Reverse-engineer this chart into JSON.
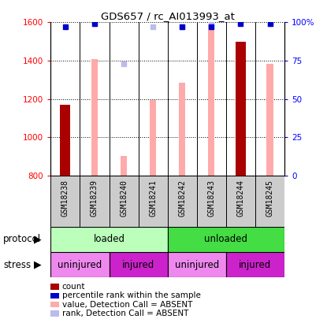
{
  "title": "GDS657 / rc_AI013993_at",
  "samples": [
    "GSM18238",
    "GSM18239",
    "GSM18240",
    "GSM18241",
    "GSM18242",
    "GSM18243",
    "GSM18244",
    "GSM18245"
  ],
  "ylim_left": [
    800,
    1600
  ],
  "ylim_right": [
    0,
    100
  ],
  "yticks_left": [
    800,
    1000,
    1200,
    1400,
    1600
  ],
  "yticks_right": [
    0,
    25,
    50,
    75,
    100
  ],
  "count_values": [
    1170,
    null,
    null,
    null,
    null,
    null,
    1500,
    null
  ],
  "count_color": "#aa0000",
  "rank_pct": [
    97,
    99,
    null,
    null,
    97,
    97,
    99,
    99
  ],
  "rank_color": "#0000cc",
  "value_absent": [
    null,
    1410,
    900,
    1195,
    1285,
    1590,
    null,
    1385
  ],
  "value_absent_color": "#ffaaaa",
  "rank_absent_pct": [
    null,
    99,
    73,
    97,
    97,
    99,
    null,
    99
  ],
  "rank_absent_color": "#bbbbee",
  "protocol_groups": [
    {
      "label": "loaded",
      "span": [
        0,
        4
      ],
      "color": "#bbffbb"
    },
    {
      "label": "unloaded",
      "span": [
        4,
        8
      ],
      "color": "#44dd44"
    }
  ],
  "stress_groups": [
    {
      "label": "uninjured",
      "span": [
        0,
        2
      ],
      "color": "#ee88ee"
    },
    {
      "label": "injured",
      "span": [
        2,
        4
      ],
      "color": "#cc22cc"
    },
    {
      "label": "uninjured",
      "span": [
        4,
        6
      ],
      "color": "#ee88ee"
    },
    {
      "label": "injured",
      "span": [
        6,
        8
      ],
      "color": "#cc22cc"
    }
  ],
  "legend_items": [
    {
      "label": "count",
      "color": "#aa0000"
    },
    {
      "label": "percentile rank within the sample",
      "color": "#0000cc"
    },
    {
      "label": "value, Detection Call = ABSENT",
      "color": "#ffaaaa"
    },
    {
      "label": "rank, Detection Call = ABSENT",
      "color": "#bbbbee"
    }
  ],
  "protocol_label": "protocol",
  "stress_label": "stress",
  "bar_width": 0.35,
  "absent_bar_width": 0.22,
  "sample_bg": "#cccccc",
  "chart_bg": "#ffffff"
}
